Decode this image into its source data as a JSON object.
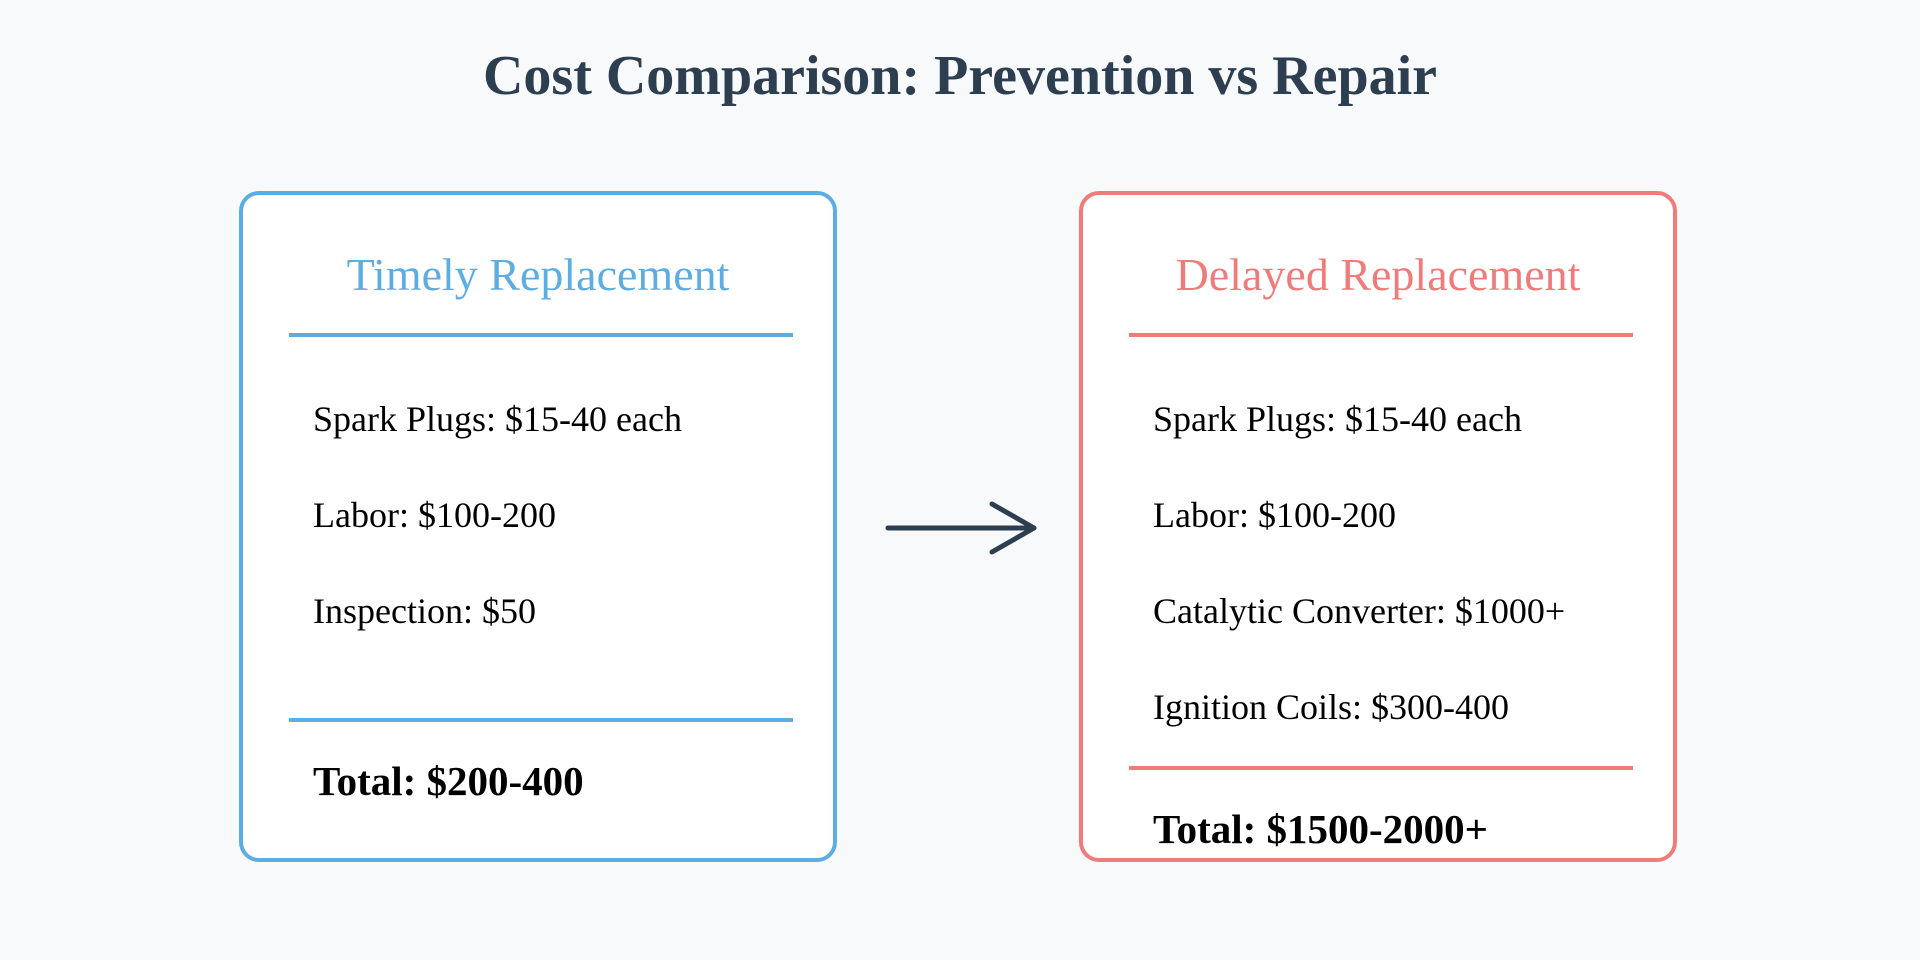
{
  "title": "Cost Comparison: Prevention vs Repair",
  "colors": {
    "timely": "#5dade2",
    "delayed": "#f07b7b",
    "title": "#2c3e50",
    "arrow": "#2c3e50",
    "background": "#f7f9fb"
  },
  "icons": {
    "arrow": "arrow-right-icon"
  },
  "timely": {
    "heading": "Timely Replacement",
    "items": [
      "Spark Plugs: $15-40 each",
      "Labor: $100-200",
      "Inspection: $50"
    ],
    "total": "Total: $200-400"
  },
  "delayed": {
    "heading": "Delayed Replacement",
    "items": [
      "Spark Plugs: $15-40 each",
      "Labor: $100-200",
      "Catalytic Converter: $1000+",
      "Ignition Coils: $300-400"
    ],
    "total": "Total: $1500-2000+"
  }
}
